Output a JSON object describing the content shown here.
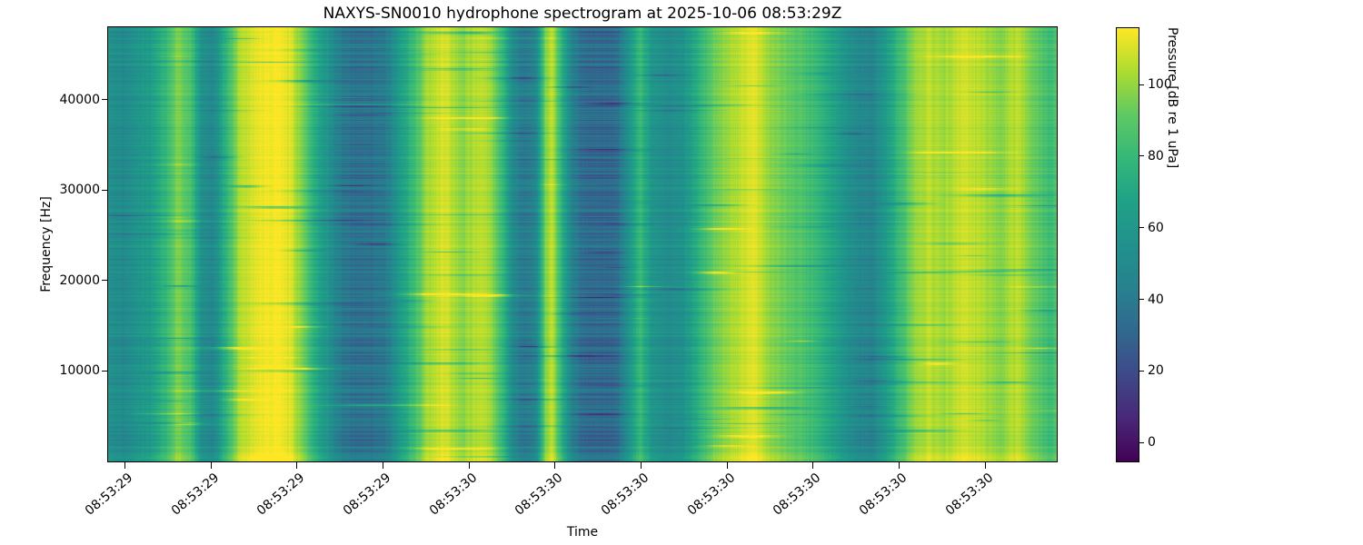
{
  "figure": {
    "background": "#ffffff"
  },
  "chart_data": {
    "type": "heatmap",
    "title": "NAXYS-SN0010 hydrophone spectrogram at 2025-10-06 08:53:29Z",
    "xlabel": "Time",
    "ylabel": "Frequency [Hz]",
    "grid": false,
    "x_tick_labels": [
      "08:53:29",
      "08:53:29",
      "08:53:29",
      "08:53:29",
      "08:53:30",
      "08:53:30",
      "08:53:30",
      "08:53:30",
      "08:53:30",
      "08:53:30",
      "08:53:30"
    ],
    "x_tick_positions": [
      0.0172,
      0.1079,
      0.1986,
      0.2893,
      0.38,
      0.4707,
      0.5614,
      0.6521,
      0.7428,
      0.8335,
      0.9242
    ],
    "y_ticks": [
      10000,
      20000,
      30000,
      40000
    ],
    "y_range_hz": [
      0,
      48000
    ],
    "colorbar": {
      "label": "Pressure [dB re 1 uPa]",
      "ticks": [
        0,
        20,
        40,
        60,
        80,
        100
      ],
      "range_db": [
        -5,
        116
      ],
      "colormap": "viridis",
      "anchors": [
        {
          "t": 0.0,
          "c": "#440154"
        },
        {
          "t": 0.1,
          "c": "#482878"
        },
        {
          "t": 0.2,
          "c": "#3e4989"
        },
        {
          "t": 0.3,
          "c": "#31688e"
        },
        {
          "t": 0.4,
          "c": "#26828e"
        },
        {
          "t": 0.5,
          "c": "#21918c"
        },
        {
          "t": 0.6,
          "c": "#1fa187"
        },
        {
          "t": 0.7,
          "c": "#35b779"
        },
        {
          "t": 0.8,
          "c": "#5ec962"
        },
        {
          "t": 0.9,
          "c": "#addc30"
        },
        {
          "t": 1.0,
          "c": "#fde725"
        }
      ]
    },
    "time_profile": {
      "comment": "broadband level vs time (fraction of x-axis) read from the vertical banding, dB re 1 uPa",
      "x": [
        0.0,
        0.015,
        0.03,
        0.044,
        0.063,
        0.073,
        0.087,
        0.099,
        0.111,
        0.125,
        0.14,
        0.159,
        0.178,
        0.193,
        0.207,
        0.221,
        0.233,
        0.245,
        0.264,
        0.279,
        0.293,
        0.307,
        0.322,
        0.336,
        0.355,
        0.374,
        0.389,
        0.403,
        0.416,
        0.427,
        0.44,
        0.451,
        0.461,
        0.468,
        0.478,
        0.488,
        0.499,
        0.518,
        0.537,
        0.552,
        0.561,
        0.574,
        0.59,
        0.606,
        0.622,
        0.638,
        0.652,
        0.667,
        0.681,
        0.695,
        0.71,
        0.727,
        0.743,
        0.76,
        0.775,
        0.791,
        0.806,
        0.82,
        0.834,
        0.849,
        0.863,
        0.882,
        0.901,
        0.921,
        0.94,
        0.959,
        0.978,
        0.992,
        1.0
      ],
      "db": [
        56,
        49,
        58,
        62,
        82,
        98,
        86,
        53,
        49,
        80,
        106,
        114,
        116,
        110,
        92,
        70,
        56,
        41,
        35,
        37,
        41,
        62,
        82,
        101,
        110,
        98,
        106,
        101,
        80,
        49,
        39,
        46,
        98,
        106,
        77,
        46,
        35,
        31,
        34,
        62,
        82,
        58,
        52,
        56,
        74,
        92,
        101,
        106,
        112,
        101,
        94,
        89,
        82,
        70,
        58,
        48,
        46,
        62,
        80,
        98,
        106,
        101,
        110,
        104,
        98,
        106,
        92,
        82,
        86
      ]
    }
  }
}
